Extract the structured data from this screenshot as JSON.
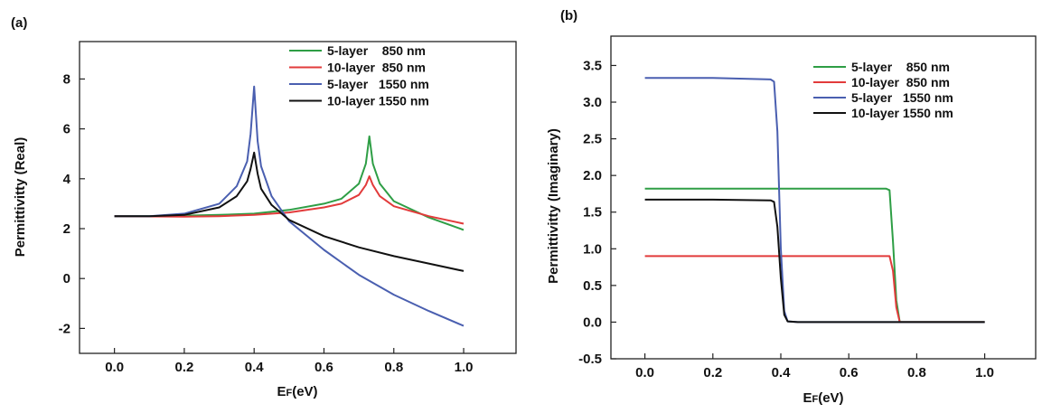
{
  "chart_data": [
    {
      "type": "line",
      "panel_label": "(a)",
      "xlabel": "EF(eV)",
      "xlabel_main": "E",
      "xlabel_sub": "F",
      "xlabel_rest": "(eV)",
      "ylabel": "Permittivitty (Real)",
      "xlim": [
        -0.1,
        1.15
      ],
      "ylim": [
        -3,
        9.5
      ],
      "xticks": [
        0.0,
        0.2,
        0.4,
        0.6,
        0.8,
        1.0
      ],
      "xtick_labels": [
        "0.0",
        "0.2",
        "0.4",
        "0.6",
        "0.8",
        "1.0"
      ],
      "yticks": [
        -2,
        0,
        2,
        4,
        6,
        8
      ],
      "ytick_labels": [
        "-2",
        "0",
        "2",
        "4",
        "6",
        "8"
      ],
      "legend_position": "top-right",
      "grid": false,
      "series": [
        {
          "name": "5-layer    850 nm",
          "color": "#2e9e45",
          "x": [
            0.0,
            0.1,
            0.2,
            0.3,
            0.4,
            0.5,
            0.6,
            0.65,
            0.7,
            0.72,
            0.73,
            0.74,
            0.76,
            0.8,
            0.9,
            1.0
          ],
          "y": [
            2.5,
            2.5,
            2.52,
            2.55,
            2.6,
            2.75,
            3.0,
            3.2,
            3.8,
            4.6,
            5.7,
            4.6,
            3.8,
            3.1,
            2.45,
            1.95
          ]
        },
        {
          "name": "10-layer  850 nm",
          "color": "#e23b3b",
          "x": [
            0.0,
            0.1,
            0.2,
            0.3,
            0.4,
            0.5,
            0.6,
            0.65,
            0.7,
            0.72,
            0.73,
            0.74,
            0.76,
            0.8,
            0.9,
            1.0
          ],
          "y": [
            2.5,
            2.49,
            2.48,
            2.5,
            2.55,
            2.65,
            2.85,
            3.0,
            3.35,
            3.75,
            4.1,
            3.75,
            3.3,
            2.9,
            2.5,
            2.2
          ]
        },
        {
          "name": "5-layer   1550 nm",
          "color": "#4a5fb0",
          "x": [
            0.0,
            0.1,
            0.2,
            0.3,
            0.35,
            0.38,
            0.39,
            0.4,
            0.41,
            0.42,
            0.45,
            0.5,
            0.6,
            0.7,
            0.8,
            0.9,
            1.0
          ],
          "y": [
            2.5,
            2.5,
            2.6,
            3.0,
            3.7,
            4.7,
            5.8,
            7.7,
            5.5,
            4.5,
            3.3,
            2.3,
            1.15,
            0.15,
            -0.65,
            -1.3,
            -1.9
          ]
        },
        {
          "name": "10-layer 1550 nm",
          "color": "#111111",
          "x": [
            0.0,
            0.1,
            0.2,
            0.3,
            0.35,
            0.38,
            0.39,
            0.4,
            0.41,
            0.42,
            0.45,
            0.5,
            0.6,
            0.7,
            0.8,
            0.9,
            1.0
          ],
          "y": [
            2.5,
            2.5,
            2.55,
            2.85,
            3.3,
            3.9,
            4.4,
            5.05,
            4.2,
            3.6,
            2.95,
            2.35,
            1.7,
            1.25,
            0.9,
            0.6,
            0.3
          ]
        }
      ]
    },
    {
      "type": "line",
      "panel_label": "(b)",
      "xlabel": "EF(eV)",
      "xlabel_main": "E",
      "xlabel_sub": "F",
      "xlabel_rest": "(eV)",
      "ylabel": "Permittivitty (Imaginary)",
      "xlim": [
        -0.1,
        1.15
      ],
      "ylim": [
        -0.5,
        3.9
      ],
      "xticks": [
        0.0,
        0.2,
        0.4,
        0.6,
        0.8,
        1.0
      ],
      "xtick_labels": [
        "0.0",
        "0.2",
        "0.4",
        "0.6",
        "0.8",
        "1.0"
      ],
      "yticks": [
        -0.5,
        0.0,
        0.5,
        1.0,
        1.5,
        2.0,
        2.5,
        3.0,
        3.5
      ],
      "ytick_labels": [
        "-0.5",
        "0.0",
        "0.5",
        "1.0",
        "1.5",
        "2.0",
        "2.5",
        "3.0",
        "3.5"
      ],
      "legend_position": "top-right",
      "grid": false,
      "series": [
        {
          "name": "5-layer    850 nm",
          "color": "#2e9e45",
          "x": [
            0.0,
            0.5,
            0.71,
            0.72,
            0.73,
            0.74,
            0.75,
            0.8,
            1.0
          ],
          "y": [
            1.82,
            1.82,
            1.82,
            1.8,
            1.1,
            0.3,
            0.0,
            0.0,
            0.0
          ]
        },
        {
          "name": "10-layer  850 nm",
          "color": "#e23b3b",
          "x": [
            0.0,
            0.5,
            0.71,
            0.72,
            0.73,
            0.74,
            0.75,
            0.8,
            1.0
          ],
          "y": [
            0.9,
            0.9,
            0.9,
            0.9,
            0.7,
            0.2,
            0.0,
            0.0,
            0.0
          ]
        },
        {
          "name": "5-layer   1550 nm",
          "color": "#4a5fb0",
          "x": [
            0.0,
            0.2,
            0.37,
            0.38,
            0.39,
            0.4,
            0.41,
            0.42,
            0.45,
            0.6,
            1.0
          ],
          "y": [
            3.33,
            3.33,
            3.31,
            3.28,
            2.6,
            1.0,
            0.15,
            0.01,
            0.0,
            0.0,
            0.0
          ]
        },
        {
          "name": "10-layer 1550 nm",
          "color": "#111111",
          "x": [
            0.0,
            0.2,
            0.37,
            0.38,
            0.39,
            0.4,
            0.41,
            0.42,
            0.45,
            0.6,
            1.0
          ],
          "y": [
            1.67,
            1.67,
            1.66,
            1.64,
            1.3,
            0.6,
            0.1,
            0.01,
            0.0,
            0.0,
            0.0
          ]
        }
      ]
    }
  ]
}
